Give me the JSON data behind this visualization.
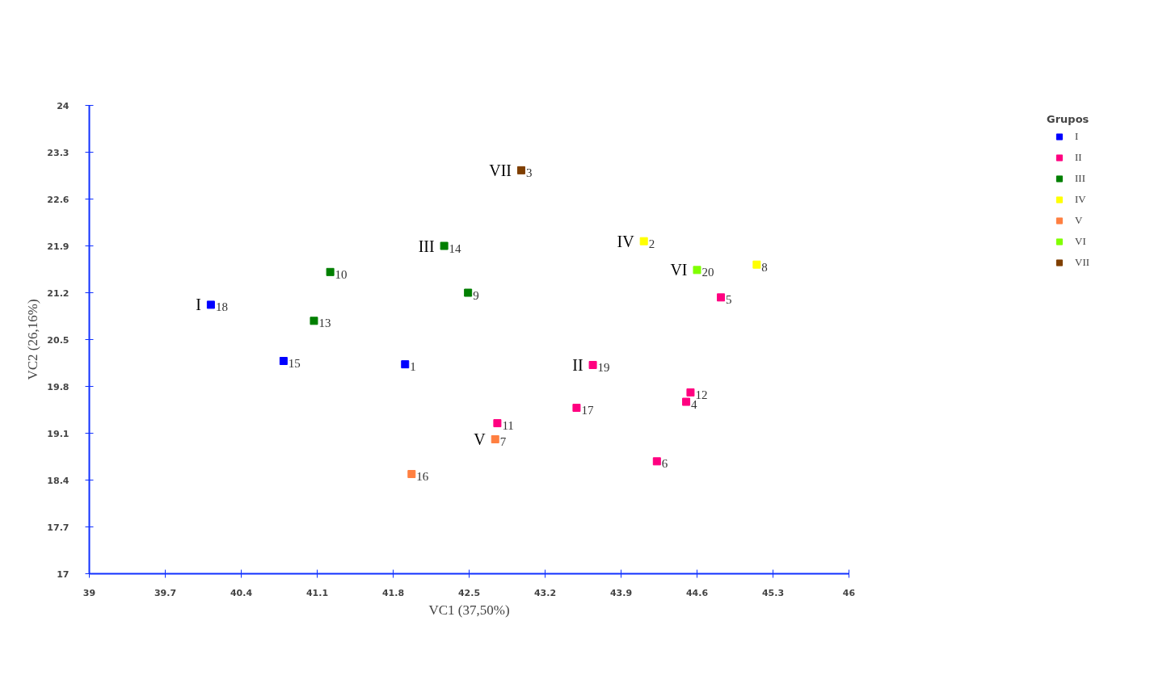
{
  "chart_data": {
    "type": "scatter",
    "xlabel": "VC1 (37,50%)",
    "ylabel": "VC2 (26,16%)",
    "legend_title": "Grupos",
    "legend": "right",
    "marker": "square",
    "grid": false,
    "xlim": [
      39,
      46
    ],
    "ylim": [
      17,
      24
    ],
    "xticks": [
      39,
      39.7,
      40.4,
      41.1,
      41.8,
      42.5,
      43.2,
      43.9,
      44.6,
      45.3,
      46
    ],
    "yticks": [
      17,
      17.7,
      18.4,
      19.1,
      19.8,
      20.5,
      21.2,
      21.9,
      22.6,
      23.3,
      24
    ],
    "series": [
      {
        "name": "I",
        "color": "#0000ff",
        "x": [
          40.12,
          40.79,
          41.91
        ],
        "values": [
          21.02,
          20.18,
          20.13
        ]
      },
      {
        "name": "II",
        "color": "#ff0080",
        "x": [
          43.64,
          43.49,
          42.76,
          44.54,
          44.5,
          44.23,
          44.82
        ],
        "values": [
          20.12,
          19.48,
          19.25,
          19.71,
          19.57,
          18.68,
          21.13
        ]
      },
      {
        "name": "III",
        "color": "#007f00",
        "x": [
          42.27,
          41.22,
          42.49,
          41.07
        ],
        "values": [
          21.9,
          21.51,
          21.2,
          20.78
        ]
      },
      {
        "name": "IV",
        "color": "#ffff00",
        "x": [
          44.11,
          45.15
        ],
        "values": [
          21.97,
          21.62
        ]
      },
      {
        "name": "V",
        "color": "#ff7f40",
        "x": [
          42.74,
          41.97
        ],
        "values": [
          19.01,
          18.49
        ]
      },
      {
        "name": "VI",
        "color": "#80ff00",
        "x": [
          44.6
        ],
        "values": [
          21.54
        ]
      },
      {
        "name": "VII",
        "color": "#7f3f00",
        "x": [
          42.98
        ],
        "values": [
          23.03
        ]
      }
    ],
    "annotations": [
      {
        "text": "18",
        "x": 40.12,
        "y": 21.02
      },
      {
        "text": "15",
        "x": 40.79,
        "y": 20.18
      },
      {
        "text": "1",
        "x": 41.91,
        "y": 20.13
      },
      {
        "text": "19",
        "x": 43.64,
        "y": 20.12
      },
      {
        "text": "17",
        "x": 43.49,
        "y": 19.48
      },
      {
        "text": "11",
        "x": 42.76,
        "y": 19.25
      },
      {
        "text": "12",
        "x": 44.54,
        "y": 19.71
      },
      {
        "text": "4",
        "x": 44.5,
        "y": 19.57
      },
      {
        "text": "6",
        "x": 44.23,
        "y": 18.68
      },
      {
        "text": "5",
        "x": 44.82,
        "y": 21.13
      },
      {
        "text": "14",
        "x": 42.27,
        "y": 21.9
      },
      {
        "text": "10",
        "x": 41.22,
        "y": 21.51
      },
      {
        "text": "9",
        "x": 42.49,
        "y": 21.2
      },
      {
        "text": "13",
        "x": 41.07,
        "y": 20.78
      },
      {
        "text": "2",
        "x": 44.11,
        "y": 21.97
      },
      {
        "text": "8",
        "x": 45.15,
        "y": 21.62
      },
      {
        "text": "7",
        "x": 42.74,
        "y": 19.01
      },
      {
        "text": "16",
        "x": 41.97,
        "y": 18.49
      },
      {
        "text": "20",
        "x": 44.6,
        "y": 21.54
      },
      {
        "text": "3",
        "x": 42.98,
        "y": 23.03
      }
    ]
  }
}
